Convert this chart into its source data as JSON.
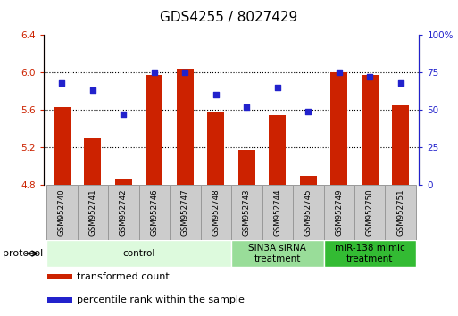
{
  "title": "GDS4255 / 8027429",
  "samples": [
    "GSM952740",
    "GSM952741",
    "GSM952742",
    "GSM952746",
    "GSM952747",
    "GSM952748",
    "GSM952743",
    "GSM952744",
    "GSM952745",
    "GSM952749",
    "GSM952750",
    "GSM952751"
  ],
  "red_values": [
    5.63,
    5.3,
    4.87,
    5.97,
    6.04,
    5.57,
    5.17,
    5.54,
    4.9,
    6.0,
    5.97,
    5.65
  ],
  "blue_values": [
    68,
    63,
    47,
    75,
    75,
    60,
    52,
    65,
    49,
    75,
    72,
    68
  ],
  "red_color": "#cc2200",
  "blue_color": "#2222cc",
  "ylim_left": [
    4.8,
    6.4
  ],
  "ylim_right": [
    0,
    100
  ],
  "yticks_left": [
    4.8,
    5.2,
    5.6,
    6.0,
    6.4
  ],
  "yticks_right": [
    0,
    25,
    50,
    75,
    100
  ],
  "ytick_labels_right": [
    "0",
    "25",
    "50",
    "75",
    "100%"
  ],
  "grid_values": [
    5.2,
    5.6,
    6.0
  ],
  "groups": [
    {
      "label": "control",
      "start": 0,
      "end": 6,
      "color": "#ddfadd"
    },
    {
      "label": "SIN3A siRNA\ntreatment",
      "start": 6,
      "end": 9,
      "color": "#99dd99"
    },
    {
      "label": "miR-138 mimic\ntreatment",
      "start": 9,
      "end": 12,
      "color": "#33bb33"
    }
  ],
  "legend_items": [
    {
      "label": "transformed count",
      "color": "#cc2200"
    },
    {
      "label": "percentile rank within the sample",
      "color": "#2222cc"
    }
  ],
  "protocol_label": "protocol",
  "bar_width": 0.55,
  "title_fontsize": 11,
  "tick_fontsize": 7.5,
  "sample_box_color": "#cccccc",
  "sample_box_edge": "#999999"
}
